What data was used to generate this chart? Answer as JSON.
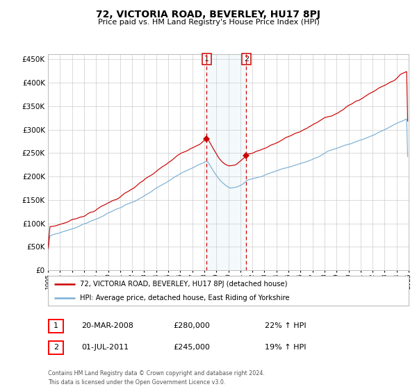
{
  "title": "72, VICTORIA ROAD, BEVERLEY, HU17 8PJ",
  "subtitle": "Price paid vs. HM Land Registry's House Price Index (HPI)",
  "legend_line1": "72, VICTORIA ROAD, BEVERLEY, HU17 8PJ (detached house)",
  "legend_line2": "HPI: Average price, detached house, East Riding of Yorkshire",
  "transaction1_date": "20-MAR-2008",
  "transaction1_price": 280000,
  "transaction1_label": "22% ↑ HPI",
  "transaction1_year": 2008.208,
  "transaction2_date": "01-JUL-2011",
  "transaction2_price": 245000,
  "transaction2_label": "19% ↑ HPI",
  "transaction2_year": 2011.5,
  "footer": "Contains HM Land Registry data © Crown copyright and database right 2024.\nThis data is licensed under the Open Government Licence v3.0.",
  "red_color": "#cc0000",
  "blue_color": "#7aafd4",
  "background_color": "#ffffff",
  "grid_color": "#cccccc",
  "ylim": [
    0,
    460000
  ],
  "yticks": [
    0,
    50000,
    100000,
    150000,
    200000,
    250000,
    300000,
    350000,
    400000,
    450000
  ],
  "start_year": 1995,
  "end_year": 2025
}
